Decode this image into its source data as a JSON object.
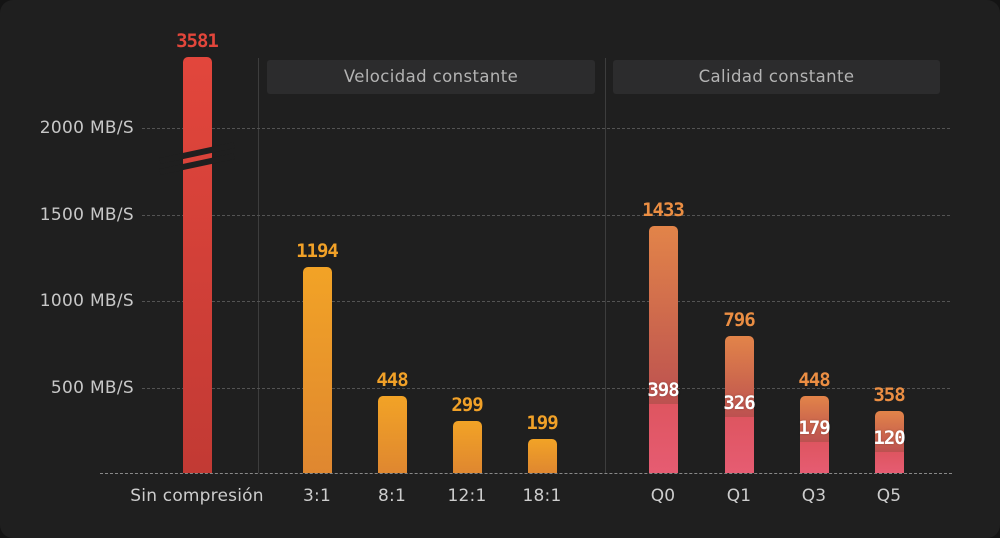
{
  "chart_data": {
    "type": "bar",
    "unit": "MB/S",
    "title": "",
    "xlabel": "",
    "ylabel": "MB/S",
    "grid": "dashed-horizontal",
    "y_ticks": [
      2000,
      1500,
      1000,
      500
    ],
    "y_tick_labels": [
      "2000 MB/S",
      "1500 MB/S",
      "1000 MB/S",
      "500 MB/S"
    ],
    "axis_break": {
      "present": true,
      "between": [
        1500,
        2000
      ],
      "applies_to": "Sin compresión"
    },
    "groups": [
      {
        "label": "",
        "bars": [
          {
            "category": "Sin compresión",
            "total": 3581,
            "style": "red",
            "broken": true
          }
        ]
      },
      {
        "label": "Velocidad constante",
        "bars": [
          {
            "category": "3:1",
            "total": 1194,
            "style": "orange"
          },
          {
            "category": "8:1",
            "total": 448,
            "style": "orange"
          },
          {
            "category": "12:1",
            "total": 299,
            "style": "orange"
          },
          {
            "category": "18:1",
            "total": 199,
            "style": "orange"
          }
        ]
      },
      {
        "label": "Calidad constante",
        "bars": [
          {
            "category": "Q0",
            "total": 1433,
            "lower": 398,
            "style": "stacked"
          },
          {
            "category": "Q1",
            "total": 796,
            "lower": 326,
            "style": "stacked"
          },
          {
            "category": "Q3",
            "total": 448,
            "lower": 179,
            "style": "stacked"
          },
          {
            "category": "Q5",
            "total": 358,
            "lower": 120,
            "style": "stacked"
          }
        ]
      }
    ],
    "colors": {
      "background": "#1f1f1f",
      "section_box_bg": "#2c2c2d",
      "section_box_text": "#b3b3b3",
      "axis_text": "#c7c7c7",
      "gridline": "#535353",
      "red_bar_top": "#e2463c",
      "red_bar_bottom": "#c23a34",
      "orange_bar_top": "#f2a326",
      "orange_bar_bottom": "#df8730",
      "stacked_upper_top": "#e28449",
      "stacked_upper_bottom": "#bc5150",
      "stacked_lower_top": "#de5560",
      "stacked_lower_bottom": "#e65c72",
      "red_label": "#e2463b",
      "orange_label": "#f1a128",
      "stacked_total_label": "#eb8e43",
      "inner_label": "#ffffff"
    }
  }
}
